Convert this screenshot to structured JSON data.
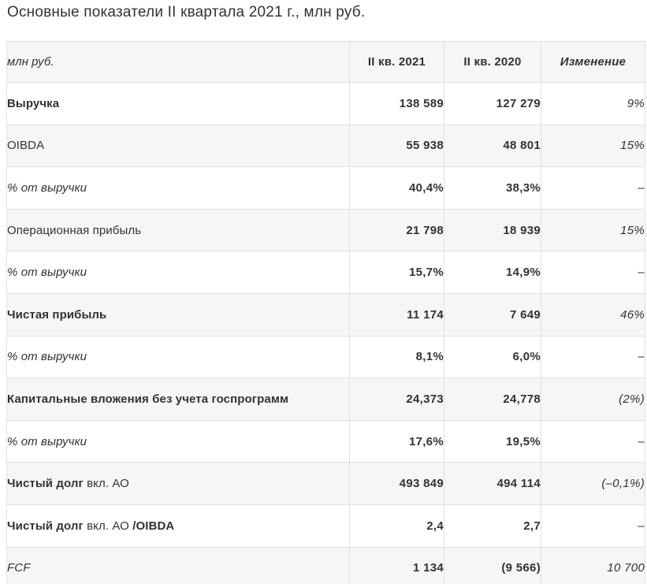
{
  "title": "Основные показатели II квартала 2021 г., млн руб.",
  "table": {
    "headers": [
      "млн руб.",
      "II кв. 2021",
      "II кв. 2020",
      "Изменение"
    ],
    "rows": [
      {
        "shaded": false,
        "label_parts": [
          {
            "text": "Выручка",
            "style": "bold"
          }
        ],
        "q2_2021": "138 589",
        "q2_2020": "127 279",
        "change": "9%"
      },
      {
        "shaded": true,
        "label_parts": [
          {
            "text": "OIBDA",
            "style": "normal"
          }
        ],
        "q2_2021": "55 938",
        "q2_2020": "48 801",
        "change": "15%"
      },
      {
        "shaded": false,
        "label_parts": [
          {
            "text": "% от выручки",
            "style": "italic"
          }
        ],
        "q2_2021": "40,4%",
        "q2_2020": "38,3%",
        "change": "–"
      },
      {
        "shaded": true,
        "label_parts": [
          {
            "text": "Операционная прибыль",
            "style": "normal"
          }
        ],
        "q2_2021": "21 798",
        "q2_2020": "18 939",
        "change": "15%"
      },
      {
        "shaded": false,
        "label_parts": [
          {
            "text": "% от выручки",
            "style": "italic"
          }
        ],
        "q2_2021": "15,7%",
        "q2_2020": "14,9%",
        "change": "–"
      },
      {
        "shaded": true,
        "label_parts": [
          {
            "text": "Чистая прибыль",
            "style": "bold"
          }
        ],
        "q2_2021": "11 174",
        "q2_2020": "7 649",
        "change": "46%"
      },
      {
        "shaded": false,
        "label_parts": [
          {
            "text": "% от выручки",
            "style": "italic"
          }
        ],
        "q2_2021": "8,1%",
        "q2_2020": "6,0%",
        "change": "–"
      },
      {
        "shaded": true,
        "label_parts": [
          {
            "text": "Капитальные вложения без учета госпрограмм",
            "style": "bold"
          }
        ],
        "q2_2021": "24,373",
        "q2_2020": "24,778",
        "change": "(2%)"
      },
      {
        "shaded": false,
        "label_parts": [
          {
            "text": "% от выручки",
            "style": "italic"
          }
        ],
        "q2_2021": "17,6%",
        "q2_2020": "19,5%",
        "change": "–"
      },
      {
        "shaded": true,
        "label_parts": [
          {
            "text": "Чистый долг",
            "style": "bold"
          },
          {
            "text": " вкл. АО",
            "style": "normal"
          }
        ],
        "q2_2021": "493 849",
        "q2_2020": "494 114",
        "change": "(–0,1%)"
      },
      {
        "shaded": false,
        "label_parts": [
          {
            "text": "Чистый долг",
            "style": "bold"
          },
          {
            "text": " вкл. АО ",
            "style": "normal"
          },
          {
            "text": "/OIBDA",
            "style": "bold"
          }
        ],
        "q2_2021": "2,4",
        "q2_2020": "2,7",
        "change": "–"
      },
      {
        "shaded": true,
        "label_parts": [
          {
            "text": "FCF",
            "style": "italic"
          }
        ],
        "q2_2021": "1 134",
        "q2_2020": "(9 566)",
        "change": "10 700"
      }
    ]
  }
}
